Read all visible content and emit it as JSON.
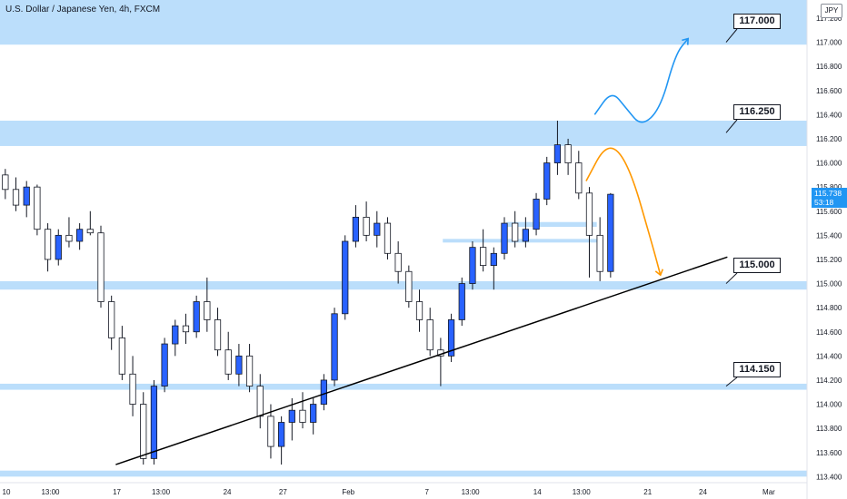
{
  "header": {
    "title": "U.S. Dollar / Japanese Yen, 4h, FXCM",
    "currency": "JPY"
  },
  "price_tag": {
    "price": "115.738",
    "countdown": "53:18"
  },
  "chart_data": {
    "type": "candlestick",
    "symbol": "USDJPY",
    "timeframe": "4h",
    "y_ticks": [
      113.4,
      113.6,
      113.8,
      114.0,
      114.2,
      114.4,
      114.6,
      114.8,
      115.0,
      115.2,
      115.4,
      115.6,
      115.8,
      116.0,
      116.2,
      116.4,
      116.6,
      116.8,
      117.0,
      117.2
    ],
    "y_tick_labels": [
      "113.400",
      "113.600",
      "113.800",
      "114.000",
      "114.200",
      "114.400",
      "114.600",
      "114.800",
      "115.000",
      "115.200",
      "115.400",
      "115.600",
      "115.800",
      "116.000",
      "116.200",
      "116.400",
      "116.600",
      "116.800",
      "117.000",
      "117.200"
    ],
    "ylim": [
      113.35,
      117.35
    ],
    "x_ticks": [
      {
        "label": "10",
        "x": 0.6
      },
      {
        "label": "13:00",
        "x": 4.75
      },
      {
        "label": "17",
        "x": 11.0
      },
      {
        "label": "13:00",
        "x": 15.15
      },
      {
        "label": "24",
        "x": 21.4
      },
      {
        "label": "27",
        "x": 26.65
      },
      {
        "label": "Feb",
        "x": 32.8
      },
      {
        "label": "7",
        "x": 40.2
      },
      {
        "label": "13:00",
        "x": 44.3
      },
      {
        "label": "14",
        "x": 50.6
      },
      {
        "label": "13:00",
        "x": 54.75
      },
      {
        "label": "21",
        "x": 61.0
      },
      {
        "label": "24",
        "x": 66.2
      },
      {
        "label": "Mar",
        "x": 72.4
      }
    ],
    "xlim": [
      0,
      76.0
    ],
    "candles": [
      [
        115.9,
        115.95,
        115.7,
        115.78
      ],
      [
        115.78,
        115.88,
        115.6,
        115.65
      ],
      [
        115.65,
        115.85,
        115.55,
        115.8
      ],
      [
        115.8,
        115.82,
        115.4,
        115.45
      ],
      [
        115.45,
        115.5,
        115.1,
        115.2
      ],
      [
        115.2,
        115.45,
        115.15,
        115.4
      ],
      [
        115.4,
        115.55,
        115.3,
        115.35
      ],
      [
        115.35,
        115.5,
        115.28,
        115.45
      ],
      [
        115.45,
        115.6,
        115.4,
        115.42
      ],
      [
        115.42,
        115.48,
        114.8,
        114.85
      ],
      [
        114.85,
        114.9,
        114.45,
        114.55
      ],
      [
        114.55,
        114.65,
        114.2,
        114.25
      ],
      [
        114.25,
        114.4,
        113.9,
        114.0
      ],
      [
        114.0,
        114.1,
        113.5,
        113.55
      ],
      [
        113.55,
        114.2,
        113.5,
        114.15
      ],
      [
        114.15,
        114.55,
        114.1,
        114.5
      ],
      [
        114.5,
        114.7,
        114.4,
        114.65
      ],
      [
        114.65,
        114.75,
        114.5,
        114.6
      ],
      [
        114.6,
        114.9,
        114.55,
        114.85
      ],
      [
        114.85,
        115.05,
        114.6,
        114.7
      ],
      [
        114.7,
        114.8,
        114.4,
        114.45
      ],
      [
        114.45,
        114.6,
        114.2,
        114.25
      ],
      [
        114.25,
        114.5,
        114.15,
        114.4
      ],
      [
        114.4,
        114.5,
        114.1,
        114.15
      ],
      [
        114.15,
        114.25,
        113.8,
        113.9
      ],
      [
        113.9,
        114.0,
        113.55,
        113.65
      ],
      [
        113.65,
        113.9,
        113.5,
        113.85
      ],
      [
        113.85,
        114.05,
        113.7,
        113.95
      ],
      [
        113.95,
        114.1,
        113.8,
        113.85
      ],
      [
        113.85,
        114.05,
        113.75,
        114.0
      ],
      [
        114.0,
        114.25,
        113.95,
        114.2
      ],
      [
        114.2,
        114.8,
        114.15,
        114.75
      ],
      [
        114.75,
        115.4,
        114.7,
        115.35
      ],
      [
        115.35,
        115.65,
        115.3,
        115.55
      ],
      [
        115.55,
        115.68,
        115.35,
        115.4
      ],
      [
        115.4,
        115.6,
        115.3,
        115.5
      ],
      [
        115.5,
        115.55,
        115.2,
        115.25
      ],
      [
        115.25,
        115.35,
        115.0,
        115.1
      ],
      [
        115.1,
        115.15,
        114.8,
        114.85
      ],
      [
        114.85,
        114.95,
        114.6,
        114.7
      ],
      [
        114.7,
        114.8,
        114.4,
        114.45
      ],
      [
        114.45,
        114.55,
        114.15,
        114.4
      ],
      [
        114.4,
        114.75,
        114.35,
        114.7
      ],
      [
        114.7,
        115.05,
        114.65,
        115.0
      ],
      [
        115.0,
        115.35,
        114.95,
        115.3
      ],
      [
        115.3,
        115.45,
        115.1,
        115.15
      ],
      [
        115.15,
        115.3,
        114.95,
        115.25
      ],
      [
        115.25,
        115.55,
        115.2,
        115.5
      ],
      [
        115.5,
        115.6,
        115.3,
        115.35
      ],
      [
        115.35,
        115.55,
        115.3,
        115.45
      ],
      [
        115.45,
        115.75,
        115.4,
        115.7
      ],
      [
        115.7,
        116.05,
        115.65,
        116.0
      ],
      [
        116.0,
        116.35,
        115.9,
        116.15
      ],
      [
        116.15,
        116.2,
        115.9,
        116.0
      ],
      [
        116.0,
        116.1,
        115.7,
        115.75
      ],
      [
        115.75,
        115.8,
        115.05,
        115.4
      ],
      [
        115.4,
        115.55,
        115.02,
        115.1
      ],
      [
        115.1,
        115.75,
        115.05,
        115.74
      ]
    ]
  },
  "levels": [
    {
      "label": "117.000",
      "zone": [
        116.98,
        117.35
      ]
    },
    {
      "label": "116.250",
      "zone": [
        116.14,
        116.35
      ]
    },
    {
      "label": "115.000",
      "zone": [
        114.95,
        115.02
      ]
    },
    {
      "label": "114.150",
      "zone": [
        114.12,
        114.17
      ]
    },
    {
      "label": "",
      "zone": [
        113.4,
        113.45
      ]
    }
  ],
  "small_zones": [
    {
      "zone": [
        115.47,
        115.51
      ],
      "from": 47.7,
      "to": 56.2
    },
    {
      "zone": [
        115.34,
        115.37
      ],
      "from": 41.7,
      "to": 56.2
    }
  ],
  "trendline": {
    "from": [
      10.9,
      113.5
    ],
    "to": [
      68.5,
      115.22
    ]
  },
  "projections": [
    {
      "color": "#2196f3",
      "path": [
        [
          56.0,
          116.4
        ],
        [
          57.6,
          116.6
        ],
        [
          59.0,
          116.45
        ],
        [
          60.4,
          116.3
        ],
        [
          62.2,
          116.45
        ],
        [
          63.6,
          116.9
        ],
        [
          64.8,
          117.03
        ]
      ]
    },
    {
      "color": "#ff9800",
      "path": [
        [
          55.2,
          115.85
        ],
        [
          57.2,
          116.18
        ],
        [
          59.2,
          116.0
        ],
        [
          61.5,
          115.3
        ],
        [
          62.2,
          115.07
        ]
      ]
    }
  ],
  "colors": {
    "bull": "#2962ff",
    "bear": "#ffffff",
    "zone": "#bbdefb",
    "trend": "#000000",
    "text": "#131722"
  }
}
